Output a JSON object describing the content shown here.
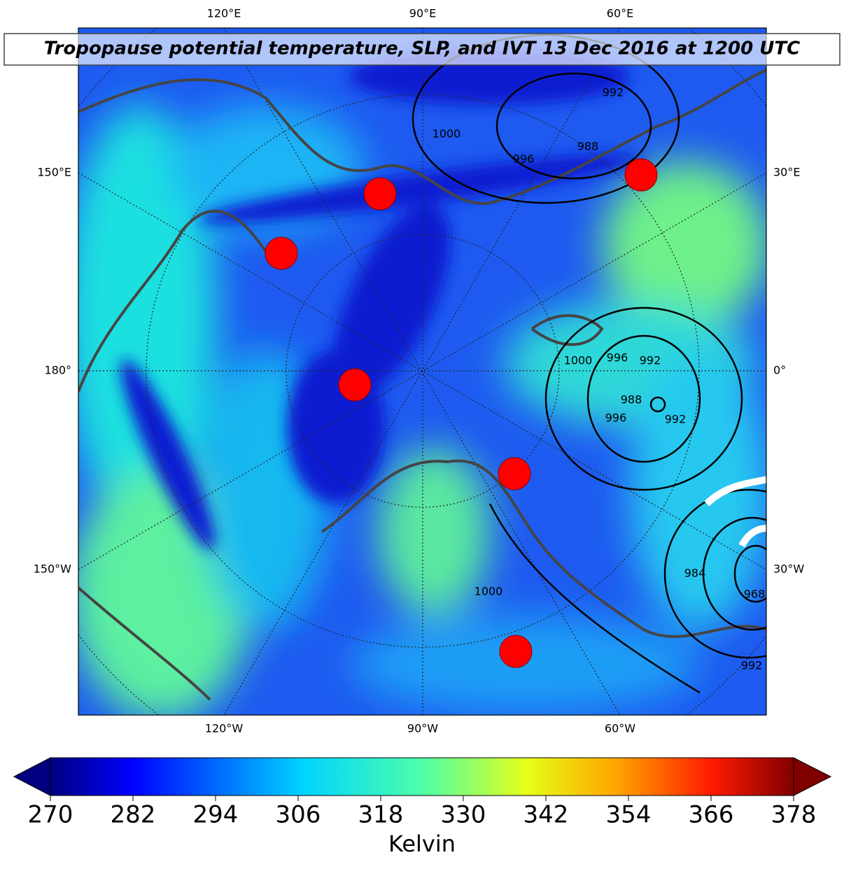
{
  "title": "Tropopause potential temperature, SLP, and IVT 13 Dec 2016 at 1200 UTC",
  "lon_labels": {
    "top": [
      "120°E",
      "90°E",
      "60°E"
    ],
    "bottom": [
      "120°W",
      "90°W",
      "60°W"
    ],
    "left": [
      "150°E",
      "180°",
      "150°W"
    ],
    "right": [
      "30°E",
      "0°",
      "30°W"
    ]
  },
  "contour_labels": [
    "992",
    "1000",
    "996",
    "988",
    "1000",
    "996",
    "992",
    "988",
    "996",
    "992",
    "1000",
    "984",
    "968",
    "992"
  ],
  "colorbar": {
    "range": [
      270,
      378
    ],
    "ticks": [
      270,
      282,
      294,
      306,
      318,
      330,
      342,
      354,
      366,
      378
    ],
    "label": "Kelvin"
  }
}
